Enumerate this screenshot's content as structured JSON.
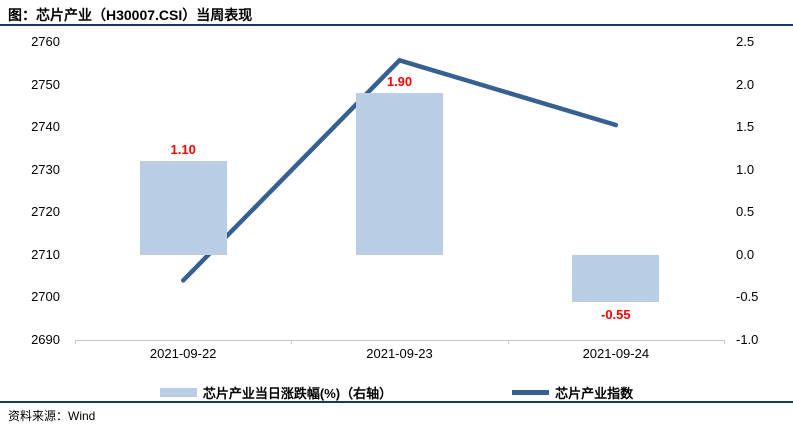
{
  "header": {
    "title": "图：芯片产业（H30007.CSI）当周表现"
  },
  "footer": {
    "source_label": "资料来源：Wind"
  },
  "colors": {
    "bar": "#b9cde5",
    "line": "#376092",
    "rule": "#17375e",
    "value_label": "#ff0000",
    "axis_line": "#c9c9c9",
    "text": "#000000"
  },
  "chart_data": {
    "type": "bar+line combo",
    "title": "图：芯片产业（H30007.CSI）当周表现",
    "categories": [
      "2021-09-22",
      "2021-09-23",
      "2021-09-24"
    ],
    "series": [
      {
        "name": "芯片产业当日涨跌幅(%)（右轴）",
        "type": "bar",
        "axis": "right",
        "values": [
          1.1,
          1.9,
          -0.55
        ],
        "labels": [
          "1.10",
          "1.90",
          "-0.55"
        ],
        "color": "#b9cde5"
      },
      {
        "name": "芯片产业指数",
        "type": "line",
        "axis": "left",
        "values": [
          2704,
          2755.7,
          2740.5
        ],
        "color": "#376092"
      }
    ],
    "left_axis": {
      "min": 2690,
      "max": 2760,
      "step": 10,
      "ticks": [
        "2760",
        "2750",
        "2740",
        "2730",
        "2720",
        "2710",
        "2700",
        "2690"
      ]
    },
    "right_axis": {
      "min": -1.0,
      "max": 2.5,
      "step": 0.5,
      "ticks": [
        "2.5",
        "2.0",
        "1.5",
        "1.0",
        "0.5",
        "0.0",
        "-0.5",
        "-1.0"
      ]
    },
    "grid": false,
    "legend_position": "bottom"
  }
}
